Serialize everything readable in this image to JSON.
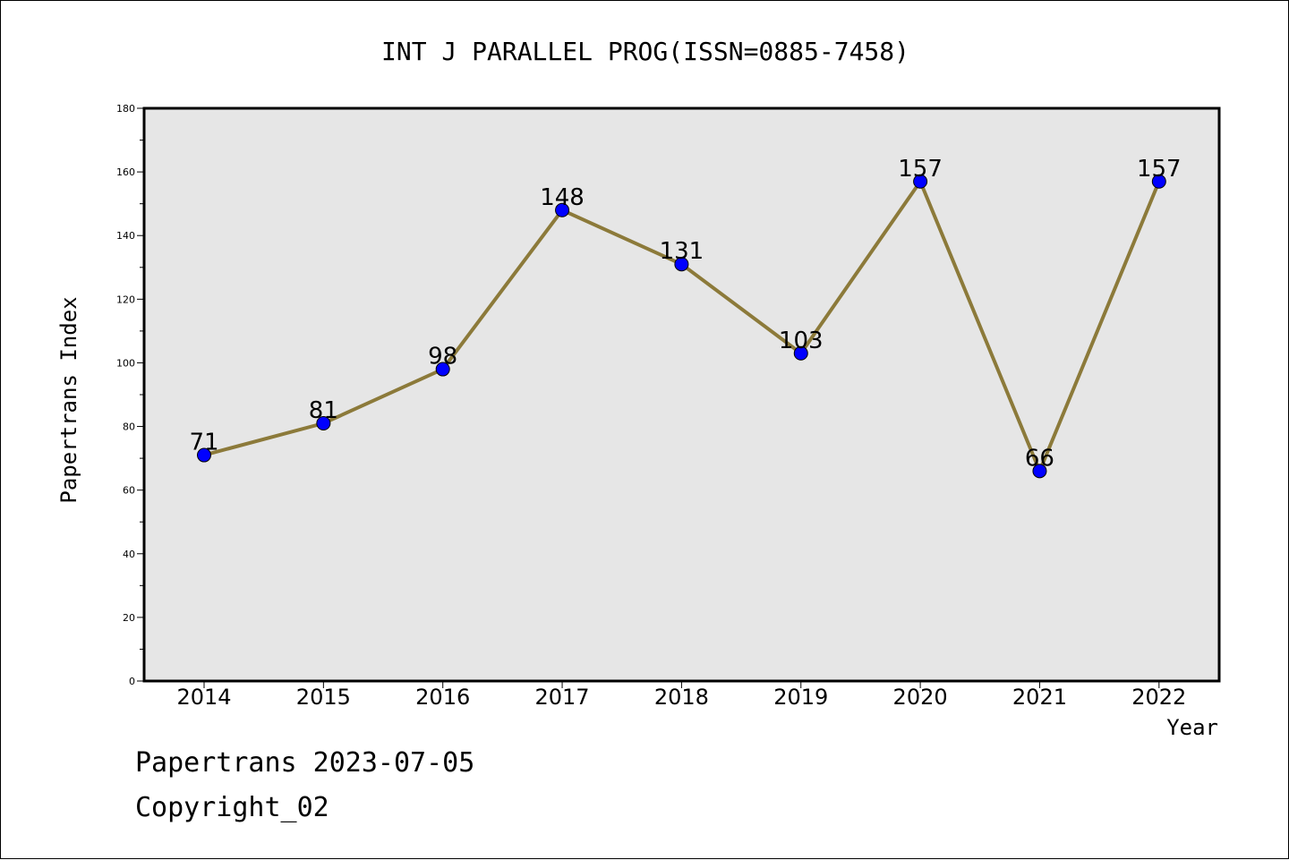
{
  "chart_data": {
    "type": "line",
    "title": "INT J PARALLEL PROG(ISSN=0885-7458)",
    "xlabel": "Year",
    "ylabel": "Papertrans Index",
    "categories": [
      "2014",
      "2015",
      "2016",
      "2017",
      "2018",
      "2019",
      "2020",
      "2021",
      "2022"
    ],
    "values": [
      71,
      81,
      98,
      148,
      131,
      103,
      157,
      66,
      157
    ],
    "ylim": [
      0,
      180
    ],
    "y_ticks": [
      0,
      20,
      40,
      60,
      80,
      100,
      120,
      140,
      160,
      180
    ],
    "data_labels": [
      "71",
      "81",
      "98",
      "148",
      "131",
      "103",
      "157",
      "66",
      "157"
    ],
    "grid": false,
    "colors": {
      "line": "#8c7a3a",
      "marker": "#0000ff",
      "plot_background": "#e6e6e6"
    }
  },
  "footer": {
    "line1": "Papertrans 2023-07-05",
    "line2": "Copyright_02"
  }
}
